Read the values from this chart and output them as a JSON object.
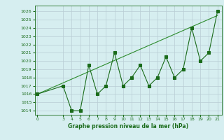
{
  "x": [
    0,
    3,
    4,
    5,
    6,
    7,
    8,
    9,
    10,
    11,
    12,
    13,
    14,
    15,
    16,
    17,
    18,
    19,
    20,
    21
  ],
  "y": [
    1016,
    1017,
    1014,
    1014,
    1019.5,
    1016,
    1017,
    1021,
    1017,
    1018,
    1019.5,
    1017,
    1018,
    1020.5,
    1018,
    1019,
    1024,
    1020,
    1021,
    1026
  ],
  "trend_x": [
    0,
    21
  ],
  "trend_y": [
    1016,
    1025.5
  ],
  "xlim": [
    -0.3,
    21.5
  ],
  "ylim": [
    1013.5,
    1026.7
  ],
  "yticks": [
    1014,
    1015,
    1016,
    1017,
    1018,
    1019,
    1020,
    1021,
    1022,
    1023,
    1024,
    1025,
    1026
  ],
  "xticks": [
    0,
    3,
    4,
    5,
    6,
    7,
    8,
    9,
    10,
    11,
    12,
    13,
    14,
    15,
    16,
    17,
    18,
    19,
    20,
    21
  ],
  "xlabel": "Graphe pression niveau de la mer (hPa)",
  "line_color": "#1a6b1a",
  "trend_color": "#2d8c2d",
  "bg_color": "#d6eef0",
  "grid_color": "#b8ccd4"
}
